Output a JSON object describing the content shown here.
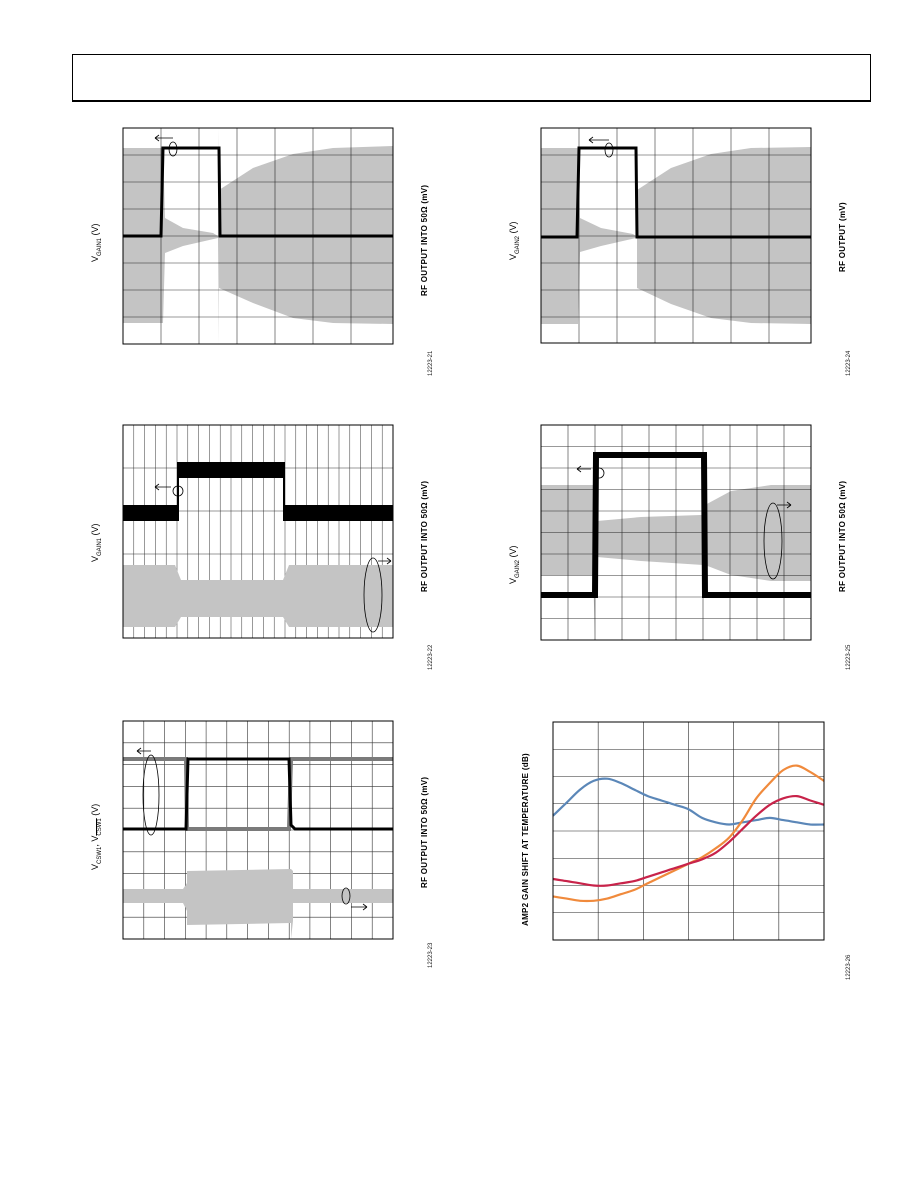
{
  "charts": [
    {
      "id": "p1",
      "left_label_main": "V",
      "left_label_sub": "GAIN1",
      "left_label_unit": " (V)",
      "right_label": "RF OUTPUT INTO 50Ω (mV)",
      "fig_id": "12223-21"
    },
    {
      "id": "p2",
      "left_label_main": "V",
      "left_label_sub": "GAIN2",
      "left_label_unit": " (V)",
      "right_label": "RF OUTPUT (mV)",
      "fig_id": "12223-24"
    },
    {
      "id": "p3",
      "left_label_main": "V",
      "left_label_sub": "GAIN1",
      "left_label_unit": " (V)",
      "right_label": "RF OUTPUT INTO 50Ω (mV)",
      "fig_id": "12223-22"
    },
    {
      "id": "p4",
      "left_label_main": "V",
      "left_label_sub": "GAIN2",
      "left_label_unit": " (V)",
      "right_label": "RF OUTPUT INTO 50Ω (mV)",
      "fig_id": "12223-25"
    },
    {
      "id": "p5",
      "left_label_main": "V",
      "left_label_sub": "CSW1",
      "left_label_mid": ", V",
      "left_label_sub2": "CSW1",
      "left_label_unit": " (V)",
      "right_label": "RF OUTPUT INTO 50Ω (mV)",
      "fig_id": "12223-23"
    },
    {
      "id": "p6",
      "left_label_main": "AMP2 GAIN SHIFT AT TEMPERATURE (dB)",
      "right_label": "",
      "fig_id": "12223-26"
    }
  ],
  "chart_data": [
    {
      "type": "line",
      "title": "",
      "ylabel": "AMP2 GAIN SHIFT AT TEMPERATURE (dB)",
      "xlabel": "",
      "grid": true,
      "series": [
        {
          "name": "",
          "color": "#5b87b8",
          "x": [
            0,
            1,
            2,
            3,
            4,
            5,
            6,
            7,
            8,
            9,
            10,
            11,
            12,
            13,
            14,
            15,
            16,
            17,
            18,
            19,
            20
          ],
          "values": [
            5.7,
            6.3,
            6.9,
            7.3,
            7.4,
            7.2,
            6.9,
            6.6,
            6.4,
            6.2,
            6.0,
            5.6,
            5.4,
            5.3,
            5.4,
            5.5,
            5.6,
            5.5,
            5.4,
            5.3,
            5.3
          ]
        },
        {
          "name": "",
          "color": "#f08a3c",
          "x": [
            0,
            1,
            2,
            3,
            4,
            5,
            6,
            7,
            8,
            9,
            10,
            11,
            12,
            13,
            14,
            15,
            16,
            17,
            18,
            19,
            20
          ],
          "values": [
            2.0,
            1.9,
            1.8,
            1.8,
            1.9,
            2.1,
            2.3,
            2.6,
            2.9,
            3.2,
            3.5,
            3.8,
            4.2,
            4.7,
            5.5,
            6.5,
            7.2,
            7.8,
            8.0,
            7.7,
            7.3
          ]
        },
        {
          "name": "",
          "color": "#c8234a",
          "x": [
            0,
            1,
            2,
            3,
            4,
            5,
            6,
            7,
            8,
            9,
            10,
            11,
            12,
            13,
            14,
            15,
            16,
            17,
            18,
            19,
            20
          ],
          "values": [
            2.8,
            2.7,
            2.6,
            2.5,
            2.5,
            2.6,
            2.7,
            2.9,
            3.1,
            3.3,
            3.5,
            3.7,
            4.0,
            4.5,
            5.1,
            5.7,
            6.2,
            6.5,
            6.6,
            6.4,
            6.2
          ]
        }
      ]
    }
  ],
  "colors": {
    "trace_black": "#000000",
    "trace_gray": "#b8b8b8",
    "trace_dgray": "#7a7a7a"
  }
}
